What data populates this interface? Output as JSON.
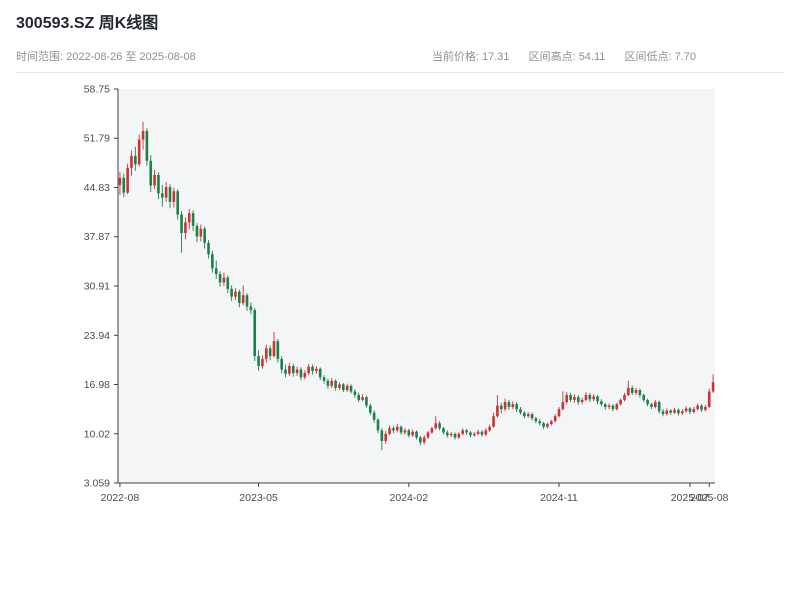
{
  "header": {
    "title": "300593.SZ 周K线图",
    "date_range": "时间范围: 2022-08-26 至 2025-08-08",
    "stats": [
      "当前价格: 17.31",
      "区间高点: 54.11",
      "区间低点: 7.70"
    ]
  },
  "chart_data": {
    "type": "candlestick",
    "symbol": "300593.SZ",
    "interval": "weekly",
    "start_date": "2022-08-26",
    "end_date": "2025-08-08",
    "current_price": 17.31,
    "range_high": 54.11,
    "range_low": 7.7,
    "ylim": [
      3.059,
      58.75
    ],
    "y_ticks": [
      "58.75",
      "51.79",
      "44.83",
      "37.87",
      "30.91",
      "23.94",
      "16.98",
      "10.02",
      "3.059"
    ],
    "x_ticks": [
      {
        "label": "2022-08",
        "index": 0
      },
      {
        "label": "2023-05",
        "index": 36
      },
      {
        "label": "2024-02",
        "index": 75
      },
      {
        "label": "2024-11",
        "index": 114
      },
      {
        "label": "2025-07",
        "index": 148
      },
      {
        "label": "2025-08",
        "index": 153
      }
    ],
    "up_color": "#cc3333",
    "down_color": "#1a8249",
    "axis_color": "#3c4043",
    "tick_text_color": "#474d57",
    "plot_bg": "#f4f5f6",
    "grid": false,
    "legend": "none",
    "xlabel": "",
    "ylabel": "",
    "candles": [
      [
        45.2,
        47.0,
        43.8,
        46.2
      ],
      [
        46.2,
        46.8,
        43.5,
        44.1
      ],
      [
        44.1,
        48.2,
        43.9,
        47.6
      ],
      [
        47.6,
        50.1,
        46.5,
        49.3
      ],
      [
        49.3,
        50.6,
        47.2,
        48.1
      ],
      [
        48.1,
        52.3,
        47.8,
        51.6
      ],
      [
        51.6,
        54.11,
        50.2,
        52.8
      ],
      [
        52.8,
        53.2,
        47.9,
        48.6
      ],
      [
        48.6,
        49.4,
        44.2,
        45.1
      ],
      [
        45.1,
        47.3,
        44.6,
        46.6
      ],
      [
        46.6,
        47.0,
        43.2,
        44.0
      ],
      [
        44.0,
        45.2,
        42.1,
        43.4
      ],
      [
        43.4,
        45.6,
        42.8,
        44.9
      ],
      [
        44.9,
        45.3,
        41.9,
        42.8
      ],
      [
        42.8,
        44.8,
        42.0,
        44.3
      ],
      [
        44.3,
        44.6,
        40.3,
        41.0
      ],
      [
        41.0,
        41.5,
        35.6,
        38.4
      ],
      [
        38.4,
        40.6,
        37.5,
        39.9
      ],
      [
        39.9,
        41.8,
        38.9,
        41.2
      ],
      [
        41.2,
        41.6,
        38.7,
        39.4
      ],
      [
        39.4,
        39.8,
        37.1,
        37.9
      ],
      [
        37.9,
        39.6,
        37.2,
        39.0
      ],
      [
        39.0,
        39.3,
        36.2,
        37.0
      ],
      [
        37.0,
        37.4,
        34.8,
        35.4
      ],
      [
        35.4,
        35.9,
        32.8,
        33.4
      ],
      [
        33.4,
        34.5,
        31.9,
        32.6
      ],
      [
        32.6,
        33.0,
        30.8,
        31.4
      ],
      [
        31.4,
        32.8,
        30.9,
        32.1
      ],
      [
        32.1,
        32.4,
        29.9,
        30.5
      ],
      [
        30.5,
        31.0,
        28.8,
        29.4
      ],
      [
        29.4,
        30.6,
        28.9,
        30.1
      ],
      [
        30.1,
        30.4,
        27.9,
        28.5
      ],
      [
        28.5,
        31.0,
        28.2,
        29.6
      ],
      [
        29.6,
        29.9,
        27.4,
        28.0
      ],
      [
        28.0,
        28.6,
        26.9,
        27.5
      ],
      [
        27.5,
        27.8,
        20.3,
        21.0
      ],
      [
        21.0,
        21.8,
        18.9,
        19.6
      ],
      [
        19.6,
        21.1,
        19.2,
        20.6
      ],
      [
        20.6,
        22.6,
        20.1,
        22.1
      ],
      [
        22.1,
        22.5,
        20.4,
        21.0
      ],
      [
        21.0,
        24.4,
        20.8,
        23.1
      ],
      [
        23.1,
        23.4,
        20.1,
        20.6
      ],
      [
        20.6,
        21.0,
        18.6,
        19.1
      ],
      [
        19.1,
        19.8,
        18.0,
        18.5
      ],
      [
        18.5,
        20.0,
        18.2,
        19.6
      ],
      [
        19.6,
        19.9,
        18.1,
        18.6
      ],
      [
        18.6,
        19.5,
        18.2,
        19.1
      ],
      [
        19.1,
        19.4,
        17.6,
        18.0
      ],
      [
        18.0,
        19.0,
        17.7,
        18.6
      ],
      [
        18.6,
        19.9,
        18.3,
        19.5
      ],
      [
        19.5,
        19.8,
        18.4,
        18.9
      ],
      [
        18.9,
        19.6,
        18.5,
        19.2
      ],
      [
        19.2,
        19.4,
        17.6,
        18.0
      ],
      [
        18.0,
        18.3,
        17.1,
        17.5
      ],
      [
        17.5,
        17.8,
        16.4,
        16.8
      ],
      [
        16.8,
        17.9,
        16.5,
        17.5
      ],
      [
        17.5,
        17.7,
        16.1,
        16.5
      ],
      [
        16.5,
        17.3,
        16.2,
        17.0
      ],
      [
        17.0,
        17.2,
        15.9,
        16.2
      ],
      [
        16.2,
        17.1,
        15.9,
        16.8
      ],
      [
        16.8,
        17.0,
        15.7,
        16.0
      ],
      [
        16.0,
        16.3,
        15.1,
        15.5
      ],
      [
        15.5,
        15.8,
        14.5,
        14.8
      ],
      [
        14.8,
        15.6,
        14.6,
        15.2
      ],
      [
        15.2,
        15.4,
        13.7,
        14.0
      ],
      [
        14.0,
        14.3,
        12.7,
        13.0
      ],
      [
        13.0,
        13.3,
        11.6,
        12.0
      ],
      [
        12.0,
        12.2,
        10.1,
        10.5
      ],
      [
        10.5,
        10.8,
        7.7,
        9.0
      ],
      [
        9.0,
        10.4,
        8.6,
        10.0
      ],
      [
        10.0,
        11.2,
        9.8,
        10.8
      ],
      [
        10.8,
        11.1,
        10.1,
        10.5
      ],
      [
        10.5,
        11.4,
        10.2,
        11.0
      ],
      [
        11.0,
        11.2,
        9.9,
        10.2
      ],
      [
        10.2,
        10.8,
        9.9,
        10.5
      ],
      [
        10.5,
        10.7,
        9.5,
        9.8
      ],
      [
        9.8,
        10.6,
        9.6,
        10.3
      ],
      [
        10.3,
        10.5,
        9.2,
        9.5
      ],
      [
        9.5,
        9.7,
        8.4,
        8.8
      ],
      [
        8.8,
        9.8,
        8.5,
        9.5
      ],
      [
        9.5,
        10.4,
        9.3,
        10.2
      ],
      [
        10.2,
        11.0,
        10.0,
        10.8
      ],
      [
        10.8,
        12.5,
        10.6,
        11.5
      ],
      [
        11.5,
        11.8,
        10.5,
        10.8
      ],
      [
        10.8,
        11.0,
        9.9,
        10.2
      ],
      [
        10.2,
        10.5,
        9.5,
        9.8
      ],
      [
        9.8,
        10.3,
        9.6,
        10.0
      ],
      [
        10.0,
        10.2,
        9.2,
        9.5
      ],
      [
        9.5,
        10.2,
        9.3,
        10.0
      ],
      [
        10.0,
        10.8,
        9.8,
        10.5
      ],
      [
        10.5,
        10.7,
        9.9,
        10.2
      ],
      [
        10.2,
        10.4,
        9.5,
        9.8
      ],
      [
        9.8,
        10.3,
        9.6,
        10.0
      ],
      [
        10.0,
        10.6,
        9.8,
        10.3
      ],
      [
        10.3,
        10.5,
        9.6,
        9.9
      ],
      [
        9.9,
        10.8,
        9.7,
        10.5
      ],
      [
        10.5,
        11.3,
        10.3,
        11.0
      ],
      [
        11.0,
        13.0,
        10.9,
        12.5
      ],
      [
        12.5,
        15.5,
        12.3,
        14.0
      ],
      [
        14.0,
        14.4,
        12.9,
        13.5
      ],
      [
        13.5,
        15.0,
        13.2,
        14.5
      ],
      [
        14.5,
        14.8,
        13.4,
        13.8
      ],
      [
        13.8,
        14.6,
        13.5,
        14.2
      ],
      [
        14.2,
        14.5,
        13.1,
        13.5
      ],
      [
        13.5,
        13.8,
        12.7,
        13.0
      ],
      [
        13.0,
        13.2,
        12.2,
        12.5
      ],
      [
        12.5,
        13.1,
        12.3,
        12.8
      ],
      [
        12.8,
        13.0,
        11.9,
        12.2
      ],
      [
        12.2,
        12.4,
        11.5,
        11.8
      ],
      [
        11.8,
        12.1,
        11.2,
        11.5
      ],
      [
        11.5,
        11.7,
        10.7,
        11.0
      ],
      [
        11.0,
        11.6,
        10.8,
        11.4
      ],
      [
        11.4,
        12.0,
        11.2,
        11.8
      ],
      [
        11.8,
        12.8,
        11.6,
        12.5
      ],
      [
        12.5,
        13.8,
        12.3,
        13.5
      ],
      [
        13.5,
        16.0,
        13.3,
        14.5
      ],
      [
        14.5,
        15.9,
        14.2,
        15.5
      ],
      [
        15.5,
        15.8,
        14.5,
        14.8
      ],
      [
        14.8,
        15.6,
        14.4,
        15.2
      ],
      [
        15.2,
        15.5,
        14.1,
        14.5
      ],
      [
        14.5,
        15.1,
        14.2,
        14.8
      ],
      [
        14.8,
        15.9,
        14.6,
        15.5
      ],
      [
        15.5,
        15.8,
        14.5,
        14.9
      ],
      [
        14.9,
        15.6,
        14.6,
        15.3
      ],
      [
        15.3,
        15.5,
        14.2,
        14.6
      ],
      [
        14.6,
        14.9,
        13.9,
        14.2
      ],
      [
        14.2,
        14.4,
        13.4,
        13.8
      ],
      [
        13.8,
        14.3,
        13.5,
        14.0
      ],
      [
        14.0,
        14.2,
        13.2,
        13.5
      ],
      [
        13.5,
        14.4,
        13.3,
        14.2
      ],
      [
        14.2,
        15.0,
        14.0,
        14.8
      ],
      [
        14.8,
        15.8,
        14.6,
        15.5
      ],
      [
        15.5,
        17.5,
        15.3,
        16.5
      ],
      [
        16.5,
        16.8,
        15.5,
        15.8
      ],
      [
        15.8,
        16.5,
        15.5,
        16.2
      ],
      [
        16.2,
        16.4,
        15.1,
        15.5
      ],
      [
        15.5,
        15.7,
        14.5,
        14.8
      ],
      [
        14.8,
        15.0,
        13.9,
        14.2
      ],
      [
        14.2,
        14.4,
        13.5,
        13.8
      ],
      [
        13.8,
        14.8,
        13.6,
        14.5
      ],
      [
        14.5,
        14.7,
        12.9,
        13.2
      ],
      [
        13.2,
        13.5,
        12.5,
        12.8
      ],
      [
        12.8,
        13.6,
        12.6,
        13.3
      ],
      [
        13.3,
        13.5,
        12.7,
        13.0
      ],
      [
        13.0,
        13.7,
        12.8,
        13.4
      ],
      [
        13.4,
        13.6,
        12.6,
        12.9
      ],
      [
        12.9,
        13.5,
        12.7,
        13.2
      ],
      [
        13.2,
        13.9,
        13.0,
        13.6
      ],
      [
        13.6,
        13.8,
        12.8,
        13.1
      ],
      [
        13.1,
        13.8,
        12.9,
        13.5
      ],
      [
        13.5,
        14.3,
        13.3,
        14.0
      ],
      [
        14.0,
        14.2,
        13.1,
        13.4
      ],
      [
        13.4,
        14.1,
        13.2,
        13.8
      ],
      [
        13.8,
        16.4,
        13.7,
        16.0
      ],
      [
        16.0,
        18.4,
        15.8,
        17.31
      ]
    ]
  }
}
